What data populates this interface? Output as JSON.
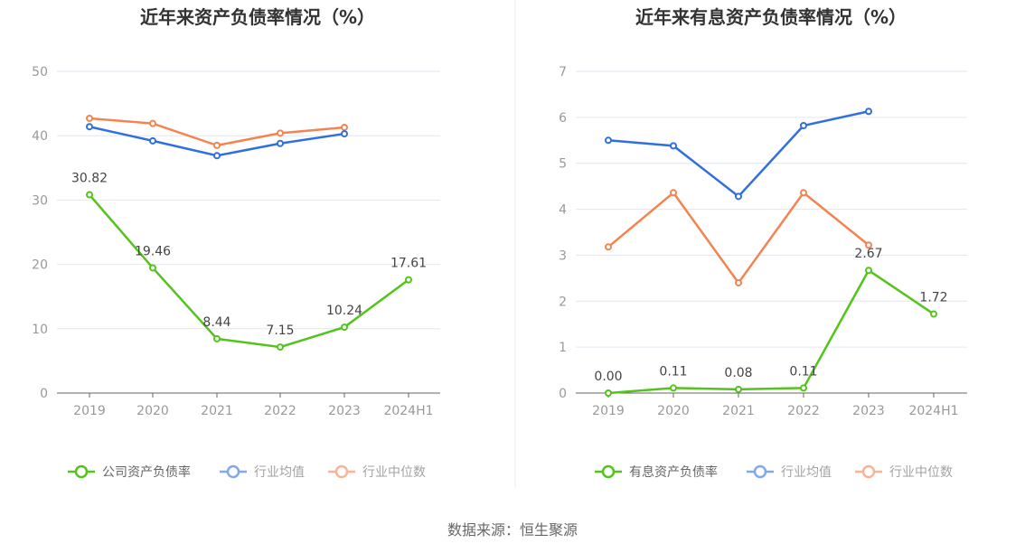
{
  "source": "数据来源：恒生聚源",
  "colors": {
    "company": "#52c41a",
    "avg": "#2f6fe0",
    "median": "#f5834f",
    "grid": "#e3e6ef",
    "axis": "#666"
  },
  "chart_data": [
    {
      "type": "line",
      "title": "近年来资产负债率情况（%）",
      "categories": [
        "2019",
        "2020",
        "2021",
        "2022",
        "2023",
        "2024H1"
      ],
      "ylim": [
        0,
        50
      ],
      "yticks": [
        0,
        10,
        20,
        30,
        40,
        50
      ],
      "grid": true,
      "legend": "bottom",
      "series": [
        {
          "name": "公司资产负债率",
          "values": [
            30.82,
            19.46,
            8.44,
            7.15,
            10.24,
            17.61
          ],
          "labels": [
            "30.82",
            "19.46",
            "8.44",
            "7.15",
            "10.24",
            "17.61"
          ]
        },
        {
          "name": "行业均值",
          "values": [
            41.4,
            39.2,
            36.9,
            38.8,
            40.3,
            null
          ]
        },
        {
          "name": "行业中位数",
          "values": [
            42.7,
            41.9,
            38.5,
            40.4,
            41.3,
            null
          ]
        }
      ]
    },
    {
      "type": "line",
      "title": "近年来有息资产负债率情况（%）",
      "categories": [
        "2019",
        "2020",
        "2021",
        "2022",
        "2023",
        "2024H1"
      ],
      "ylim": [
        0,
        7
      ],
      "yticks": [
        0,
        1,
        2,
        3,
        4,
        5,
        6,
        7
      ],
      "grid": true,
      "legend": "bottom",
      "series": [
        {
          "name": "有息资产负债率",
          "values": [
            0.0,
            0.11,
            0.08,
            0.11,
            2.67,
            1.72
          ],
          "labels": [
            "0.00",
            "0.11",
            "0.08",
            "0.11",
            "2.67",
            "1.72"
          ]
        },
        {
          "name": "行业均值",
          "values": [
            5.5,
            5.38,
            4.28,
            5.82,
            6.13,
            null
          ]
        },
        {
          "name": "行业中位数",
          "values": [
            3.18,
            4.36,
            2.4,
            4.36,
            3.22,
            null
          ]
        }
      ]
    }
  ]
}
